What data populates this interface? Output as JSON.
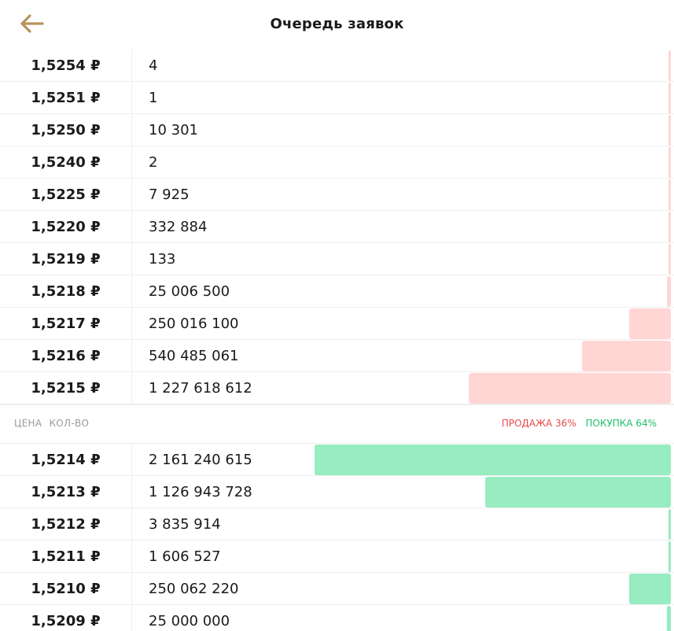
{
  "header": {
    "title": "Очередь заявок",
    "back_icon": "arrow-left-icon",
    "accent_color": "#b8935a"
  },
  "asks": [
    {
      "price": "1,5254 ₽",
      "qty": "4",
      "depth": 0.0
    },
    {
      "price": "1,5251 ₽",
      "qty": "1",
      "depth": 0.0
    },
    {
      "price": "1,5250 ₽",
      "qty": "10 301",
      "depth": 0.0
    },
    {
      "price": "1,5240 ₽",
      "qty": "2",
      "depth": 0.0
    },
    {
      "price": "1,5225 ₽",
      "qty": "7 925",
      "depth": 0.0
    },
    {
      "price": "1,5220 ₽",
      "qty": "332 884",
      "depth": 0.0
    },
    {
      "price": "1,5219 ₽",
      "qty": "133",
      "depth": 0.0
    },
    {
      "price": "1,5218 ₽",
      "qty": "25 006 500",
      "depth": 0.012
    },
    {
      "price": "1,5217 ₽",
      "qty": "250 016 100",
      "depth": 0.116
    },
    {
      "price": "1,5216 ₽",
      "qty": "540 485 061",
      "depth": 0.25
    },
    {
      "price": "1,5215 ₽",
      "qty": "1 227 618 612",
      "depth": 0.568
    }
  ],
  "divider": {
    "price_label": "ЦЕНА",
    "qty_label": "КОЛ-ВО",
    "sell_label": "ПРОДАЖА 36%",
    "buy_label": "ПОКУПКА 64%",
    "sell_color": "#e84a4a",
    "buy_color": "#1fbf6a"
  },
  "bids": [
    {
      "price": "1,5214 ₽",
      "qty": "2 161 240 615",
      "depth": 1.0
    },
    {
      "price": "1,5213 ₽",
      "qty": "1 126 943 728",
      "depth": 0.521
    },
    {
      "price": "1,5212 ₽",
      "qty": "3 835 914",
      "depth": 0.002
    },
    {
      "price": "1,5211 ₽",
      "qty": "1 606 527",
      "depth": 0.001
    },
    {
      "price": "1,5210 ₽",
      "qty": "250 062 220",
      "depth": 0.116
    },
    {
      "price": "1,5209 ₽",
      "qty": "25 000 000",
      "depth": 0.012
    }
  ]
}
